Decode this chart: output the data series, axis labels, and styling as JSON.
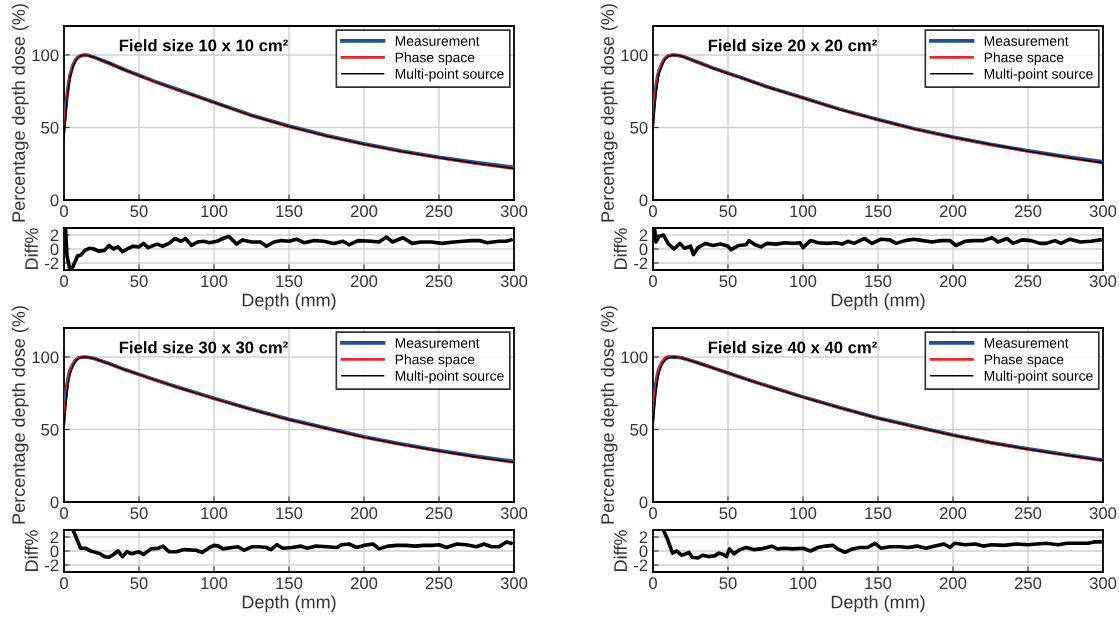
{
  "chart_data": [
    {
      "type": "line",
      "title": "Field size 10 x 10 cm²",
      "ylabel": "Percentage depth dose (%)",
      "xlim": [
        0,
        300
      ],
      "xticks": [
        0,
        50,
        100,
        150,
        200,
        250,
        300
      ],
      "ylim": [
        0,
        120
      ],
      "yticks": [
        0,
        50,
        100
      ],
      "grid": true,
      "legend": "top right",
      "x": [
        0,
        1,
        2,
        3,
        4,
        6,
        8,
        10,
        13,
        16,
        20,
        30,
        40,
        50,
        60,
        75,
        100,
        125,
        150,
        175,
        200,
        225,
        250,
        275,
        300
      ],
      "series": [
        {
          "name": "Measurement",
          "color": "#1d4f9e",
          "values": [
            50,
            62,
            72,
            80,
            86,
            93,
            97,
            99,
            100,
            99.8,
            98.5,
            94.5,
            90,
            86,
            82,
            76.5,
            67.5,
            58.5,
            51,
            44.5,
            38.8,
            33.8,
            29.5,
            25.8,
            22.5
          ]
        },
        {
          "name": "Phase space",
          "color": "#e8262b",
          "values": [
            48,
            61,
            72,
            80,
            86,
            93,
            97,
            99,
            100,
            99.6,
            98.3,
            94,
            89.6,
            85.6,
            81.6,
            76,
            67,
            58,
            50.5,
            44,
            38.3,
            33.3,
            29,
            25,
            21.5
          ]
        },
        {
          "name": "Multi-point source",
          "color": "#000000",
          "values": [
            42,
            56,
            68,
            77,
            84,
            92,
            96.5,
            98.8,
            100,
            99.7,
            98.4,
            94.3,
            89.8,
            85.8,
            81.8,
            76.3,
            67.2,
            58.2,
            50.7,
            44.2,
            38.5,
            33.5,
            29.2,
            25.3,
            21.7
          ]
        }
      ]
    },
    {
      "type": "line",
      "xlabel": "Depth (mm)",
      "ylabel": "Diff%",
      "xlim": [
        0,
        300
      ],
      "xticks": [
        0,
        50,
        100,
        150,
        200,
        250,
        300
      ],
      "ylim": [
        -3,
        3
      ],
      "yticks": [
        -2,
        0,
        2
      ],
      "grid": true,
      "series": [
        {
          "color": "#000000",
          "x": [
            1,
            2,
            4,
            6,
            9,
            11,
            14,
            17,
            20,
            23,
            27,
            30,
            33,
            36,
            39,
            43,
            46,
            50,
            53,
            56,
            62,
            66,
            70,
            74,
            78,
            81,
            85,
            89,
            93,
            97,
            102,
            106,
            110,
            115,
            119,
            125,
            131,
            135,
            140,
            145,
            150,
            155,
            160,
            167,
            173,
            180,
            186,
            190,
            196,
            205,
            210,
            215,
            219,
            226,
            232,
            238,
            245,
            252,
            260,
            266,
            272,
            277,
            282,
            290,
            295,
            298
          ],
          "values": [
            3,
            -1,
            -3,
            -2.5,
            -1,
            -0.9,
            -0.2,
            0.1,
            0,
            -0.3,
            -0.2,
            0.5,
            0,
            0.3,
            -0.4,
            0.1,
            0.4,
            0.3,
            0.8,
            0.2,
            0.7,
            0.4,
            0.8,
            1.5,
            1.1,
            1.5,
            0.5,
            1,
            1.1,
            0.9,
            1.1,
            1.5,
            1.8,
            0.7,
            1.3,
            1,
            1,
            0.4,
            1,
            1.2,
            1.1,
            1.4,
            0.9,
            1.2,
            1.1,
            0.8,
            1.1,
            0.6,
            1.2,
            1.1,
            1,
            1.7,
            1,
            1.6,
            0.8,
            1,
            1,
            0.8,
            1,
            1.1,
            1.2,
            1.2,
            0.9,
            1.1,
            1.1,
            1.3
          ]
        }
      ]
    },
    {
      "type": "line",
      "title": "Field size 20 x 20 cm²",
      "ylabel": "Percentage depth dose (%)",
      "xlim": [
        0,
        300
      ],
      "xticks": [
        0,
        50,
        100,
        150,
        200,
        250,
        300
      ],
      "ylim": [
        0,
        120
      ],
      "yticks": [
        0,
        50,
        100
      ],
      "grid": true,
      "legend": "top right",
      "x": [
        0,
        1,
        2,
        3,
        4,
        6,
        8,
        10,
        13,
        16,
        20,
        30,
        40,
        50,
        60,
        75,
        100,
        125,
        150,
        175,
        200,
        225,
        250,
        275,
        300
      ],
      "series": [
        {
          "name": "Measurement",
          "color": "#1d4f9e",
          "values": [
            60,
            70,
            78,
            85,
            89,
            94,
            97.5,
            99.3,
            100,
            99.8,
            99,
            95,
            91,
            87.5,
            84,
            78.5,
            70.5,
            62.5,
            55.5,
            49,
            43.5,
            38.5,
            34,
            30,
            26.3
          ]
        },
        {
          "name": "Phase space",
          "color": "#e8262b",
          "values": [
            52,
            66,
            77,
            84,
            89,
            94.5,
            98,
            99.6,
            100,
            99.8,
            98.9,
            94.8,
            90.8,
            87.2,
            83.7,
            78.2,
            70.2,
            62.2,
            55.1,
            48.6,
            43,
            38,
            33.5,
            29.3,
            25.5
          ]
        },
        {
          "name": "Multi-point source",
          "color": "#000000",
          "values": [
            48,
            62,
            73,
            81,
            87,
            93,
            97,
            99,
            100,
            99.8,
            98.9,
            94.9,
            90.9,
            87.3,
            83.8,
            78.3,
            70.3,
            62.3,
            55.3,
            48.8,
            43.2,
            38.2,
            33.7,
            29.5,
            25.6
          ]
        }
      ]
    },
    {
      "type": "line",
      "xlabel": "Depth (mm)",
      "ylabel": "Diff%",
      "xlim": [
        0,
        300
      ],
      "xticks": [
        0,
        50,
        100,
        150,
        200,
        250,
        300
      ],
      "ylim": [
        -3,
        3
      ],
      "yticks": [
        -2,
        0,
        2
      ],
      "grid": true,
      "series": [
        {
          "color": "#000000",
          "x": [
            1,
            2,
            4,
            7,
            10,
            14,
            18,
            21,
            25,
            27,
            30,
            35,
            40,
            45,
            50,
            52,
            57,
            62,
            64,
            68,
            72,
            76,
            82,
            88,
            94,
            98,
            100,
            105,
            110,
            116,
            122,
            126,
            130,
            134,
            138,
            141,
            146,
            152,
            158,
            162,
            168,
            174,
            180,
            186,
            192,
            198,
            202,
            208,
            214,
            220,
            226,
            230,
            236,
            240,
            246,
            252,
            258,
            262,
            268,
            272,
            278,
            285,
            292,
            298
          ],
          "values": [
            3,
            1,
            1.8,
            2,
            0.8,
            0,
            0.8,
            0.1,
            0.4,
            -0.8,
            0.2,
            0.8,
            0.5,
            0.7,
            0.4,
            -0.1,
            0.5,
            0.6,
            1.2,
            0.6,
            0.3,
            0.8,
            0.7,
            0.9,
            0.8,
            0.9,
            0.2,
            1.2,
            0.9,
            0.8,
            0.9,
            0.7,
            1.1,
            0.8,
            1.2,
            1.5,
            0.8,
            1.4,
            1.3,
            0.8,
            1.2,
            1.4,
            1.2,
            1,
            1.2,
            1.2,
            0.5,
            1.1,
            1.2,
            1.2,
            1.6,
            1,
            1.5,
            0.8,
            1.3,
            1.2,
            0.8,
            0.8,
            1.2,
            0.8,
            1.4,
            1,
            1.1,
            1.3
          ]
        }
      ]
    },
    {
      "type": "line",
      "title": "Field size 30 x 30 cm²",
      "ylabel": "Percentage depth dose (%)",
      "xlim": [
        0,
        300
      ],
      "xticks": [
        0,
        50,
        100,
        150,
        200,
        250,
        300
      ],
      "ylim": [
        0,
        120
      ],
      "yticks": [
        0,
        50,
        100
      ],
      "grid": true,
      "legend": "top right",
      "x": [
        0,
        1,
        2,
        3,
        4,
        6,
        8,
        10,
        13,
        16,
        20,
        30,
        40,
        50,
        60,
        75,
        100,
        125,
        150,
        175,
        200,
        225,
        250,
        275,
        300
      ],
      "series": [
        {
          "name": "Measurement",
          "color": "#1d4f9e",
          "values": [
            65,
            74,
            81,
            87,
            91,
            95,
            98,
            99.5,
            100,
            99.8,
            99,
            95.5,
            91.5,
            88,
            84.5,
            79.5,
            71.5,
            64,
            57,
            51,
            45,
            40,
            35.5,
            31.5,
            28
          ]
        },
        {
          "name": "Phase space",
          "color": "#e8262b",
          "values": [
            55,
            68,
            78,
            85,
            90,
            95,
            98.3,
            99.7,
            100,
            99.8,
            98.9,
            95.3,
            91.3,
            87.8,
            84.3,
            79.2,
            71.2,
            63.6,
            56.6,
            50.5,
            44.5,
            39.5,
            35,
            30.9,
            27.2
          ]
        },
        {
          "name": "Multi-point source",
          "color": "#000000",
          "values": [
            50,
            64,
            75,
            83,
            88,
            94,
            97.5,
            99.3,
            100,
            99.8,
            99,
            95.4,
            91.4,
            87.9,
            84.4,
            79.3,
            71.3,
            63.8,
            56.8,
            50.7,
            44.7,
            39.7,
            35.2,
            31.1,
            27.4
          ]
        }
      ]
    },
    {
      "type": "line",
      "xlabel": "Depth (mm)",
      "ylabel": "Diff%",
      "xlim": [
        0,
        300
      ],
      "xticks": [
        0,
        50,
        100,
        150,
        200,
        250,
        300
      ],
      "ylim": [
        -3,
        3
      ],
      "yticks": [
        -2,
        0,
        2
      ],
      "grid": true,
      "series": [
        {
          "color": "#000000",
          "x": [
            6,
            9,
            11,
            14,
            18,
            21,
            24,
            27,
            30,
            33,
            36,
            39,
            42,
            45,
            50,
            53,
            58,
            63,
            66,
            70,
            75,
            80,
            88,
            92,
            97,
            100,
            103,
            106,
            112,
            116,
            120,
            125,
            130,
            135,
            138,
            142,
            146,
            152,
            158,
            162,
            168,
            175,
            182,
            185,
            190,
            195,
            200,
            206,
            210,
            216,
            222,
            228,
            234,
            240,
            246,
            250,
            255,
            262,
            268,
            275,
            280,
            285,
            290,
            295,
            298
          ],
          "values": [
            3,
            1.5,
            0.4,
            0.4,
            0,
            -0.2,
            -0.4,
            -0.8,
            -0.9,
            -0.5,
            0,
            -0.8,
            -0.1,
            -0.4,
            -0.1,
            -0.5,
            0.3,
            0.4,
            0.7,
            -0.1,
            -0.1,
            0.2,
            0.1,
            -0.2,
            0.5,
            0.8,
            0.7,
            0.3,
            0.5,
            0.6,
            0.1,
            0.6,
            0.6,
            0.5,
            0.2,
            0.9,
            0.4,
            0.5,
            0.7,
            0.4,
            0.7,
            0.6,
            0.5,
            0.9,
            1,
            0.5,
            0.8,
            1,
            0.3,
            0.7,
            0.8,
            0.8,
            0.7,
            0.8,
            0.8,
            0.9,
            0.5,
            1,
            0.9,
            0.6,
            1,
            0.6,
            0.6,
            1.3,
            1.1
          ]
        }
      ]
    },
    {
      "type": "line",
      "title": "Field size 40 x 40 cm²",
      "ylabel": "Percentage depth dose (%)",
      "xlim": [
        0,
        300
      ],
      "xticks": [
        0,
        50,
        100,
        150,
        200,
        250,
        300
      ],
      "ylim": [
        0,
        120
      ],
      "yticks": [
        0,
        50,
        100
      ],
      "grid": true,
      "legend": "top right",
      "x": [
        0,
        1,
        2,
        3,
        4,
        6,
        8,
        10,
        13,
        16,
        20,
        30,
        40,
        50,
        60,
        75,
        100,
        125,
        150,
        175,
        200,
        225,
        250,
        275,
        300
      ],
      "series": [
        {
          "name": "Measurement",
          "color": "#1d4f9e",
          "values": [
            67,
            75,
            82,
            88,
            92,
            96,
            98.5,
            99.7,
            100,
            99.8,
            99.2,
            96,
            92.5,
            89,
            85.5,
            80.5,
            72.5,
            65,
            58,
            52,
            46.2,
            41,
            36.7,
            32.7,
            29
          ]
        },
        {
          "name": "Phase space",
          "color": "#e8262b",
          "values": [
            56,
            70,
            80,
            87,
            92,
            97,
            99.5,
            100.3,
            100.5,
            100.2,
            99.3,
            95.9,
            92.3,
            88.8,
            85.3,
            80.3,
            72.2,
            64.6,
            57.6,
            51.6,
            45.8,
            40.6,
            36.2,
            32.2,
            28.4
          ]
        },
        {
          "name": "Multi-point source",
          "color": "#000000",
          "values": [
            52,
            65,
            76,
            84,
            89,
            95,
            98,
            99.5,
            100,
            99.8,
            99.2,
            95.9,
            92.4,
            88.9,
            85.4,
            80.4,
            72.3,
            64.8,
            57.8,
            51.8,
            46,
            40.8,
            36.4,
            32.4,
            28.6
          ]
        }
      ]
    },
    {
      "type": "line",
      "xlabel": "Depth (mm)",
      "ylabel": "Diff%",
      "xlim": [
        0,
        300
      ],
      "xticks": [
        0,
        50,
        100,
        150,
        200,
        250,
        300
      ],
      "ylim": [
        -3,
        3
      ],
      "yticks": [
        -2,
        0,
        2
      ],
      "grid": true,
      "series": [
        {
          "color": "#000000",
          "x": [
            7,
            10,
            13,
            16,
            19,
            22,
            24,
            26,
            30,
            33,
            37,
            41,
            44,
            47,
            49,
            51,
            54,
            58,
            62,
            67,
            72,
            76,
            79,
            83,
            88,
            93,
            100,
            105,
            110,
            115,
            120,
            123,
            128,
            133,
            138,
            143,
            148,
            152,
            158,
            165,
            170,
            176,
            182,
            188,
            194,
            198,
            201,
            208,
            215,
            220,
            226,
            234,
            242,
            250,
            256,
            262,
            270,
            276,
            283,
            290,
            294,
            298
          ],
          "values": [
            3,
            1.5,
            -0.3,
            0,
            -0.6,
            -0.4,
            -0.2,
            -0.9,
            -1,
            -0.6,
            -0.8,
            -0.7,
            -0.3,
            -0.5,
            -0.8,
            0.3,
            -0.4,
            0.2,
            0.5,
            0.2,
            0.3,
            0.5,
            0.7,
            0.3,
            0.4,
            0.3,
            0.4,
            0,
            0.5,
            0.7,
            0.8,
            0.3,
            -0.2,
            0.3,
            0.5,
            0.5,
            1.1,
            0.4,
            0.6,
            0.6,
            0.5,
            0.7,
            0.4,
            0.7,
            1,
            0.5,
            1.1,
            0.9,
            1,
            0.7,
            0.9,
            0.8,
            1,
            0.9,
            1,
            1.1,
            0.9,
            1.1,
            1.1,
            1.1,
            1.3,
            1.3
          ]
        }
      ]
    }
  ]
}
